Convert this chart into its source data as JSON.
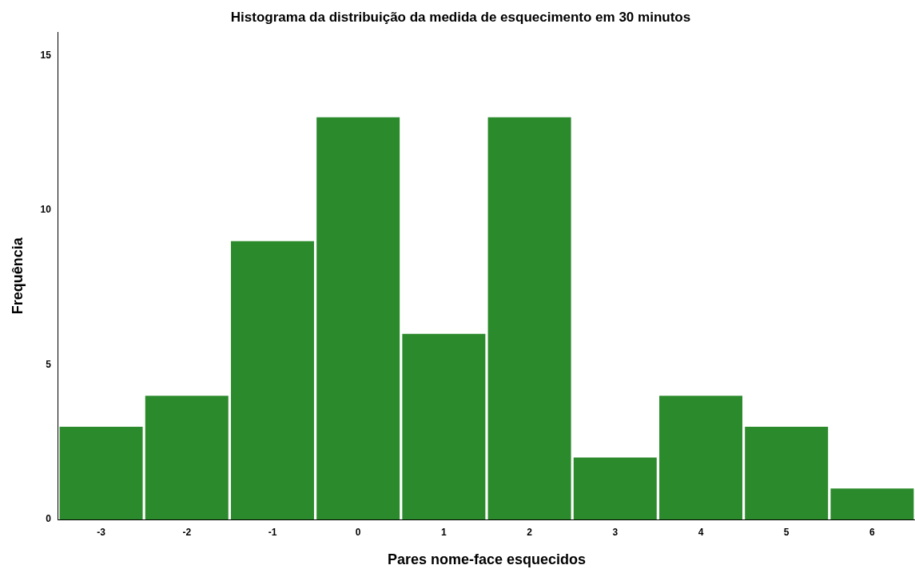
{
  "chart_data": {
    "type": "histogram",
    "title": "Histograma da distribuição da medida de esquecimento em 30 minutos",
    "xlabel": "Pares nome-face esquecidos",
    "ylabel": "Frequência",
    "bins": [
      -3.5,
      -2.5,
      -1.5,
      -0.5,
      0.5,
      1.5,
      2.5,
      3.5,
      4.5,
      5.5,
      6.5
    ],
    "values": [
      3,
      4,
      9,
      13,
      6,
      13,
      2,
      4,
      3,
      1
    ],
    "color": "#2b8a2b",
    "xlim": [
      -3.5,
      6.5
    ],
    "xticks": [
      -3,
      -2,
      -1,
      0,
      1,
      2,
      3,
      4,
      5,
      6
    ],
    "ylim": [
      0,
      15.75
    ],
    "yticks": [
      0,
      5,
      10,
      15
    ],
    "grid": false,
    "legend": false
  }
}
